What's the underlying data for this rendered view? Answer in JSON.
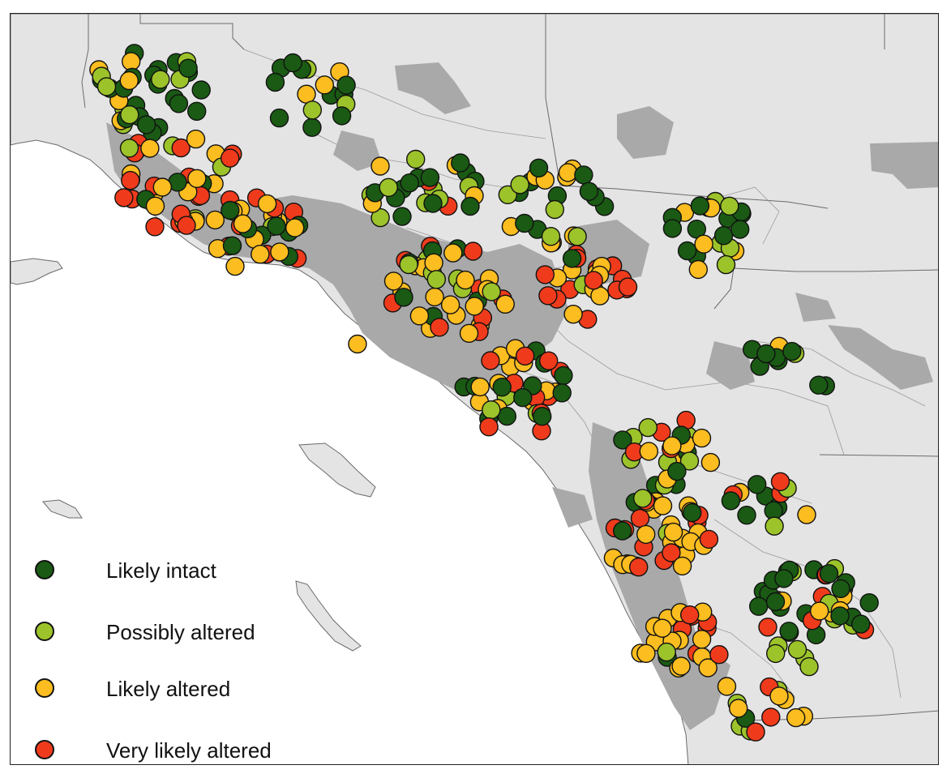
{
  "map": {
    "colors": {
      "ocean": "#ffffff",
      "land": "#e4e4e4",
      "urban": "#a9a9a9",
      "boundary": "#6b6b6b",
      "watershed_line": "#9a9a9a",
      "marker_stroke": "#111111"
    }
  },
  "legend": {
    "items": [
      {
        "label": "Likely intact",
        "color": "#1a5a14",
        "icon": "dark-green-circle"
      },
      {
        "label": "Possibly altered",
        "color": "#9cc32a",
        "icon": "light-green-circle"
      },
      {
        "label": "Likely altered",
        "color": "#fbbd1f",
        "icon": "yellow-circle"
      },
      {
        "label": "Very likely altered",
        "color": "#ef3b1c",
        "icon": "red-circle"
      }
    ]
  }
}
